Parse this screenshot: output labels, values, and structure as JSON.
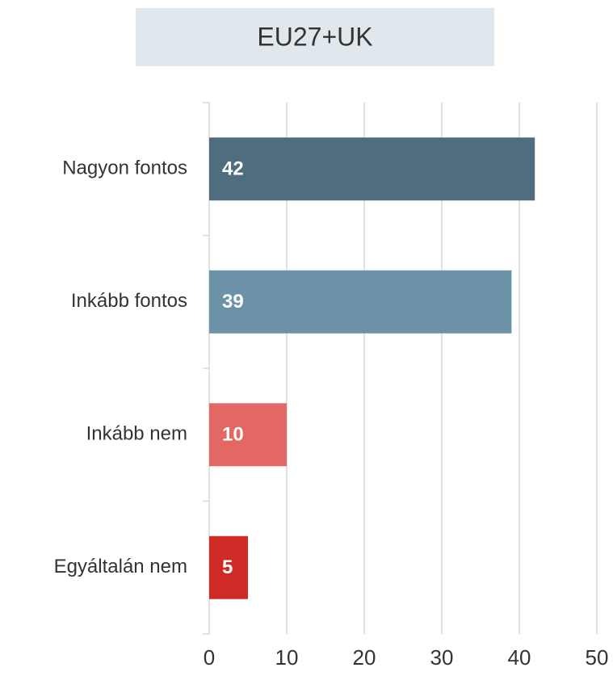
{
  "chart_data": {
    "type": "barh",
    "title": "EU27+UK",
    "categories": [
      "Nagyon fontos",
      "Inkább fontos",
      "Inkább nem",
      "Egyáltalán nem"
    ],
    "values": [
      42,
      39,
      10,
      5
    ],
    "colors": [
      "#506d7f",
      "#6b92a6",
      "#e36863",
      "#cf2b26"
    ],
    "xlim": [
      0,
      50
    ],
    "xticks": [
      0,
      10,
      20,
      30,
      40,
      50
    ],
    "grid": true
  }
}
